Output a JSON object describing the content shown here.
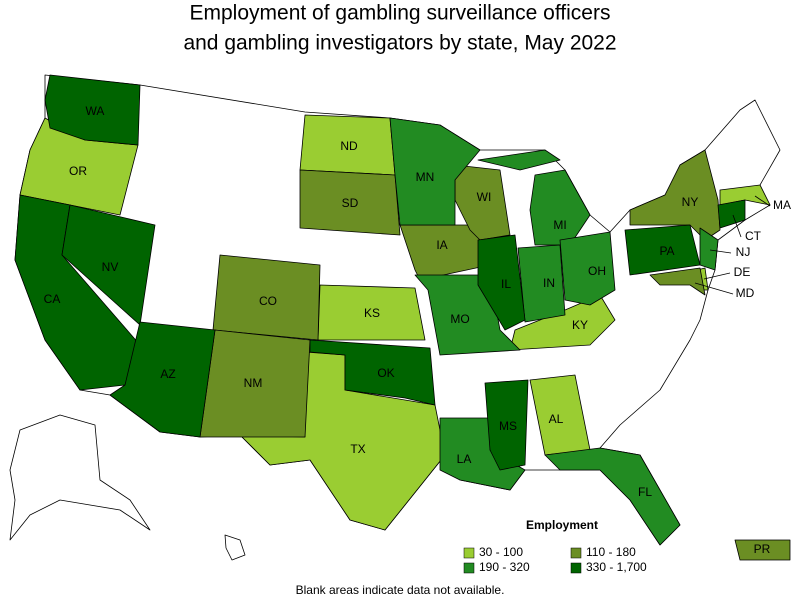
{
  "title": [
    "Employment of gambling surveillance officers",
    "and gambling investigators by state, May 2022"
  ],
  "legend": {
    "title": "Employment",
    "items": [
      {
        "label": "30 - 100",
        "color": "#9acd32",
        "states": [
          "OR",
          "ND",
          "KS",
          "TX",
          "KY",
          "AL",
          "MA",
          "DE"
        ]
      },
      {
        "label": "110 - 180",
        "color": "#6b8e23",
        "states": [
          "SD",
          "CO",
          "NM",
          "IA",
          "WI",
          "NY",
          "MD",
          "PR"
        ]
      },
      {
        "label": "190 - 320",
        "color": "#228b22",
        "states": [
          "MN",
          "MI",
          "IN",
          "OH",
          "MO",
          "LA",
          "FL",
          "NJ"
        ]
      },
      {
        "label": "330 - 1,700",
        "color": "#006400",
        "states": [
          "WA",
          "CA",
          "NV",
          "AZ",
          "OK",
          "IL",
          "MS",
          "PA",
          "CT"
        ]
      }
    ]
  },
  "note": "Blank areas indicate data not available."
}
